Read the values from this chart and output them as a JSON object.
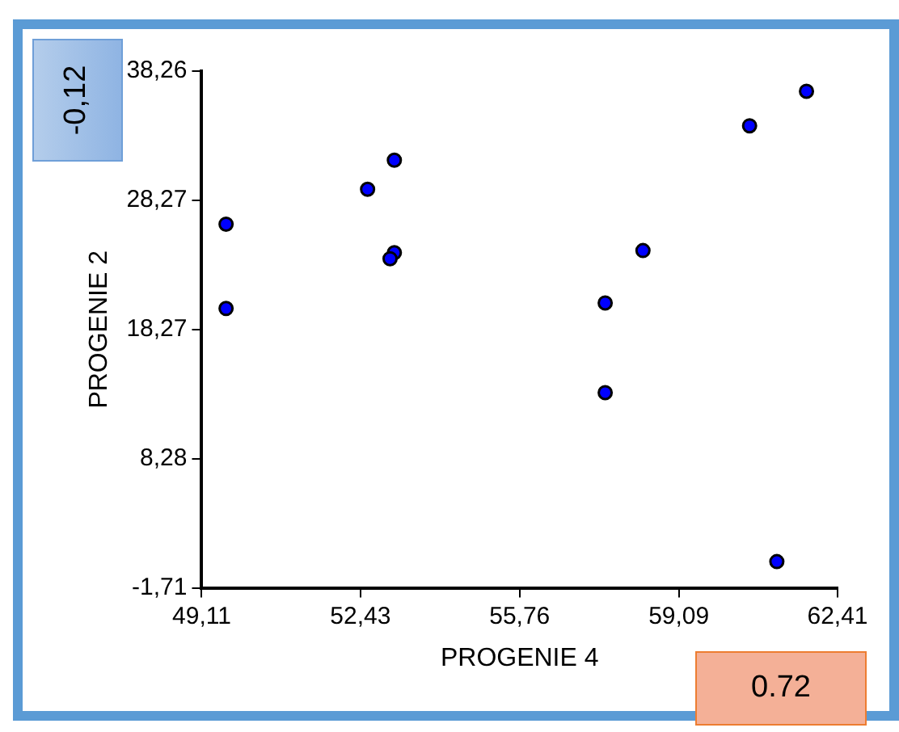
{
  "chart_data": {
    "type": "scatter",
    "xlabel": "PROGENIE 4",
    "ylabel": "PROGENIE 2",
    "xlim": [
      49.11,
      62.41
    ],
    "xticks": [
      {
        "value": 49.11,
        "label": "49,11"
      },
      {
        "value": 52.43,
        "label": "52,43"
      },
      {
        "value": 55.76,
        "label": "55,76"
      },
      {
        "value": 59.09,
        "label": "59,09"
      },
      {
        "value": 62.41,
        "label": "62,41"
      }
    ],
    "ylim": [
      -1.71,
      38.26
    ],
    "yticks": [
      {
        "value": -1.71,
        "label": "-1,71"
      },
      {
        "value": 8.28,
        "label": "8,28"
      },
      {
        "value": 18.27,
        "label": "18,27"
      },
      {
        "value": 28.27,
        "label": "28,27"
      },
      {
        "value": 38.26,
        "label": "38,26"
      }
    ],
    "x": [
      49.62,
      49.62,
      52.58,
      53.14,
      53.14,
      53.05,
      57.55,
      57.55,
      58.34,
      60.57,
      61.76,
      61.14
    ],
    "values": [
      26.42,
      19.9,
      29.12,
      31.37,
      24.21,
      23.75,
      20.33,
      13.39,
      24.38,
      34.03,
      36.7,
      0.32
    ],
    "color": "#0000ff",
    "marker": "circle",
    "grid": false,
    "legend": false,
    "annotations": [
      "-0,12",
      "0.72"
    ]
  }
}
